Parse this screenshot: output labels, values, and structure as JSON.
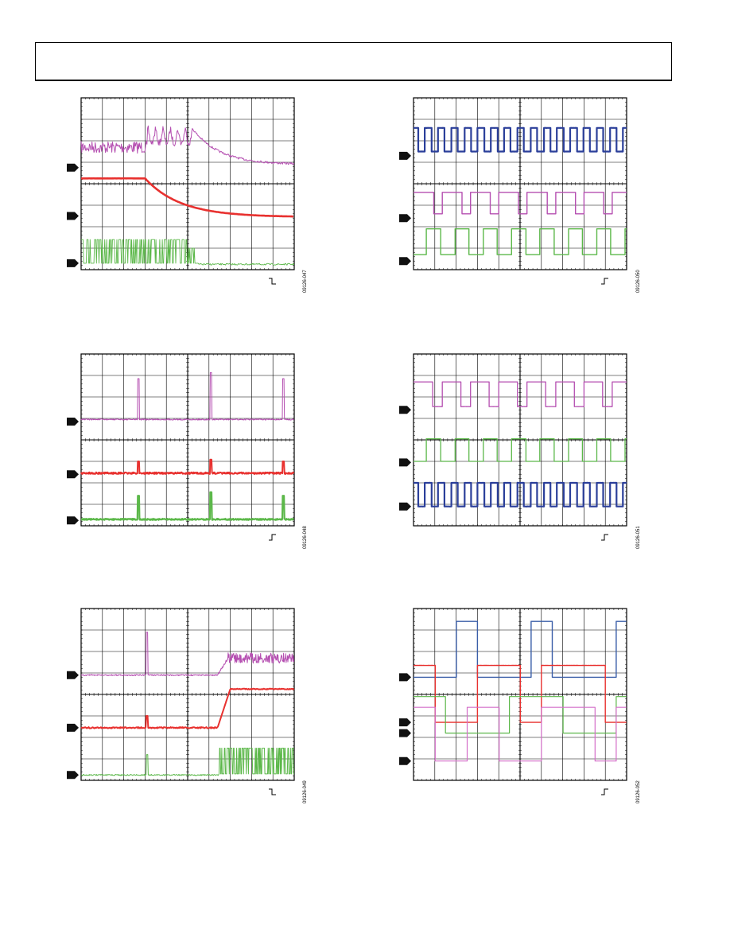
{
  "page": {
    "header_text": ""
  },
  "scopes": [
    {
      "id": "09126-047",
      "trigger": "fall",
      "traces": [
        {
          "color": "#b54fb1",
          "marker": true,
          "style": "noisy-decay"
        },
        {
          "color": "#e8312f",
          "marker": true,
          "style": "decay"
        },
        {
          "color": "#5cb84a",
          "marker": true,
          "style": "burst-then-flat"
        }
      ]
    },
    {
      "id": "09126-050",
      "trigger": "rise",
      "traces": [
        {
          "color": "#2b3f9a",
          "marker": true,
          "style": "square-fast"
        },
        {
          "color": "#b54fb1",
          "marker": true,
          "style": "square-slow"
        },
        {
          "color": "#5cb84a",
          "marker": true,
          "style": "square-slow-shift"
        }
      ]
    },
    {
      "id": "09126-048",
      "trigger": "rise",
      "traces": [
        {
          "color": "#b54fb1",
          "marker": true,
          "style": "spikes-large"
        },
        {
          "color": "#e8312f",
          "marker": true,
          "style": "spikes-small"
        },
        {
          "color": "#5cb84a",
          "marker": true,
          "style": "spikes-medium"
        }
      ]
    },
    {
      "id": "09126-051",
      "trigger": "rise",
      "traces": [
        {
          "color": "#b54fb1",
          "marker": true,
          "style": "square-slow"
        },
        {
          "color": "#5cb84a",
          "marker": true,
          "style": "square-slow-shift"
        },
        {
          "color": "#2b3f9a",
          "marker": true,
          "style": "square-fast"
        }
      ]
    },
    {
      "id": "09126-049",
      "trigger": "fall",
      "traces": [
        {
          "color": "#b54fb1",
          "marker": true,
          "style": "step-noisy"
        },
        {
          "color": "#e8312f",
          "marker": true,
          "style": "step-clean"
        },
        {
          "color": "#5cb84a",
          "marker": true,
          "style": "step-burst"
        }
      ]
    },
    {
      "id": "09126-052",
      "trigger": "rise",
      "traces": [
        {
          "color": "#3a5ea8",
          "marker": true,
          "style": "mux"
        },
        {
          "color": "#e8312f",
          "marker": true,
          "style": "mux"
        },
        {
          "color": "#5cb84a",
          "marker": true,
          "style": "mux"
        },
        {
          "color": "#d46ec8",
          "marker": true,
          "style": "mux"
        }
      ]
    }
  ]
}
